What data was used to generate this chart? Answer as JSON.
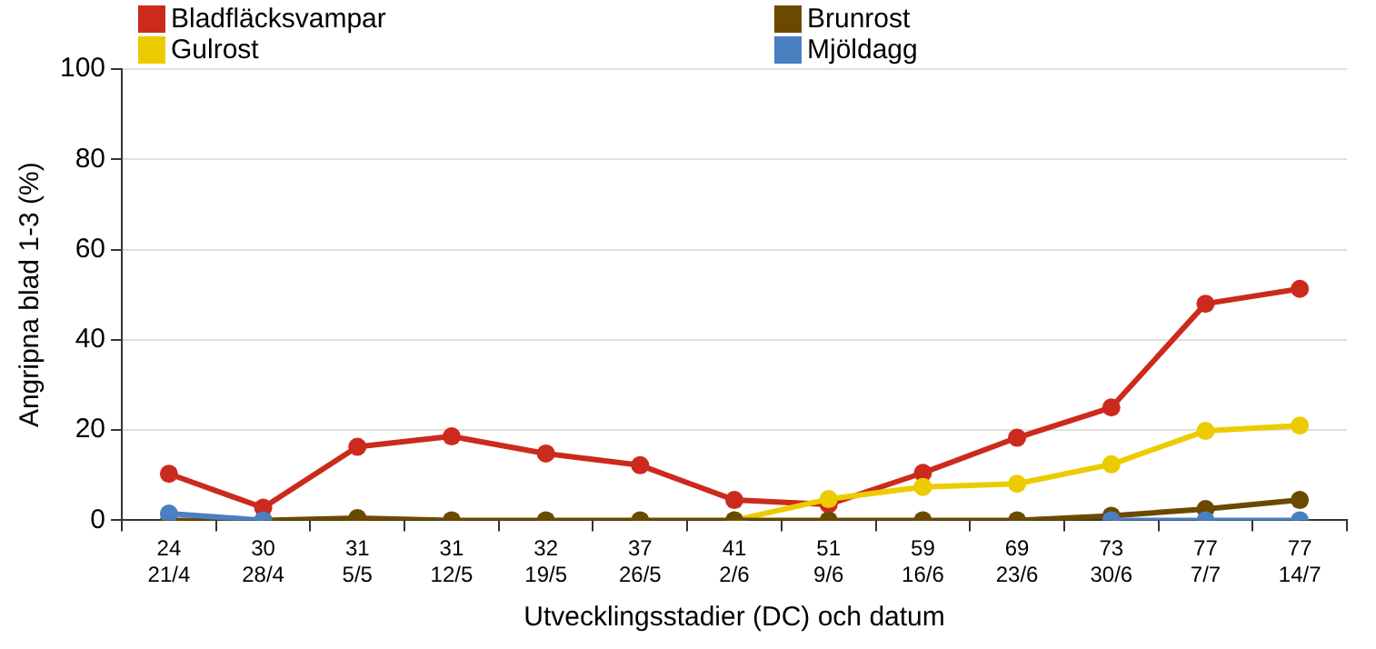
{
  "chart_data": {
    "type": "line",
    "xlabel": "Utvecklingsstadier (DC) och datum",
    "ylabel": "Angripna blad 1-3 (%)",
    "categories": [
      "24\n21/4",
      "30\n28/4",
      "31\n5/5",
      "31\n12/5",
      "32\n19/5",
      "37\n26/5",
      "41\n2/6",
      "51\n9/6",
      "59\n16/6",
      "69\n23/6",
      "73\n30/6",
      "77\n7/7",
      "77\n14/7"
    ],
    "series": [
      {
        "name": "Bladfläcksvampar",
        "color": "#cc2a1d",
        "values": [
          10.3,
          2.8,
          16.3,
          18.6,
          14.8,
          12.2,
          4.5,
          3.5,
          10.5,
          18.3,
          25,
          48,
          51.3
        ]
      },
      {
        "name": "Brunrost",
        "color": "#6b4a00",
        "values": [
          0,
          0,
          0.5,
          0,
          0,
          0,
          0,
          0,
          0,
          0,
          1,
          2.5,
          4.5
        ]
      },
      {
        "name": "Gulrost",
        "color": "#eccc00",
        "values": [
          null,
          null,
          null,
          null,
          null,
          null,
          0,
          4.7,
          7.4,
          8.1,
          12.4,
          19.8,
          21
        ]
      },
      {
        "name": "Mjöldagg",
        "color": "#4a7fc1",
        "values": [
          1.5,
          0,
          null,
          null,
          null,
          null,
          null,
          null,
          null,
          null,
          0,
          0,
          0
        ]
      }
    ],
    "ylim": [
      0,
      100
    ],
    "yticks": [
      0,
      20,
      40,
      60,
      80,
      100
    ],
    "grid": "y",
    "legend": "top",
    "marker": "circle",
    "line_style": "solid"
  }
}
